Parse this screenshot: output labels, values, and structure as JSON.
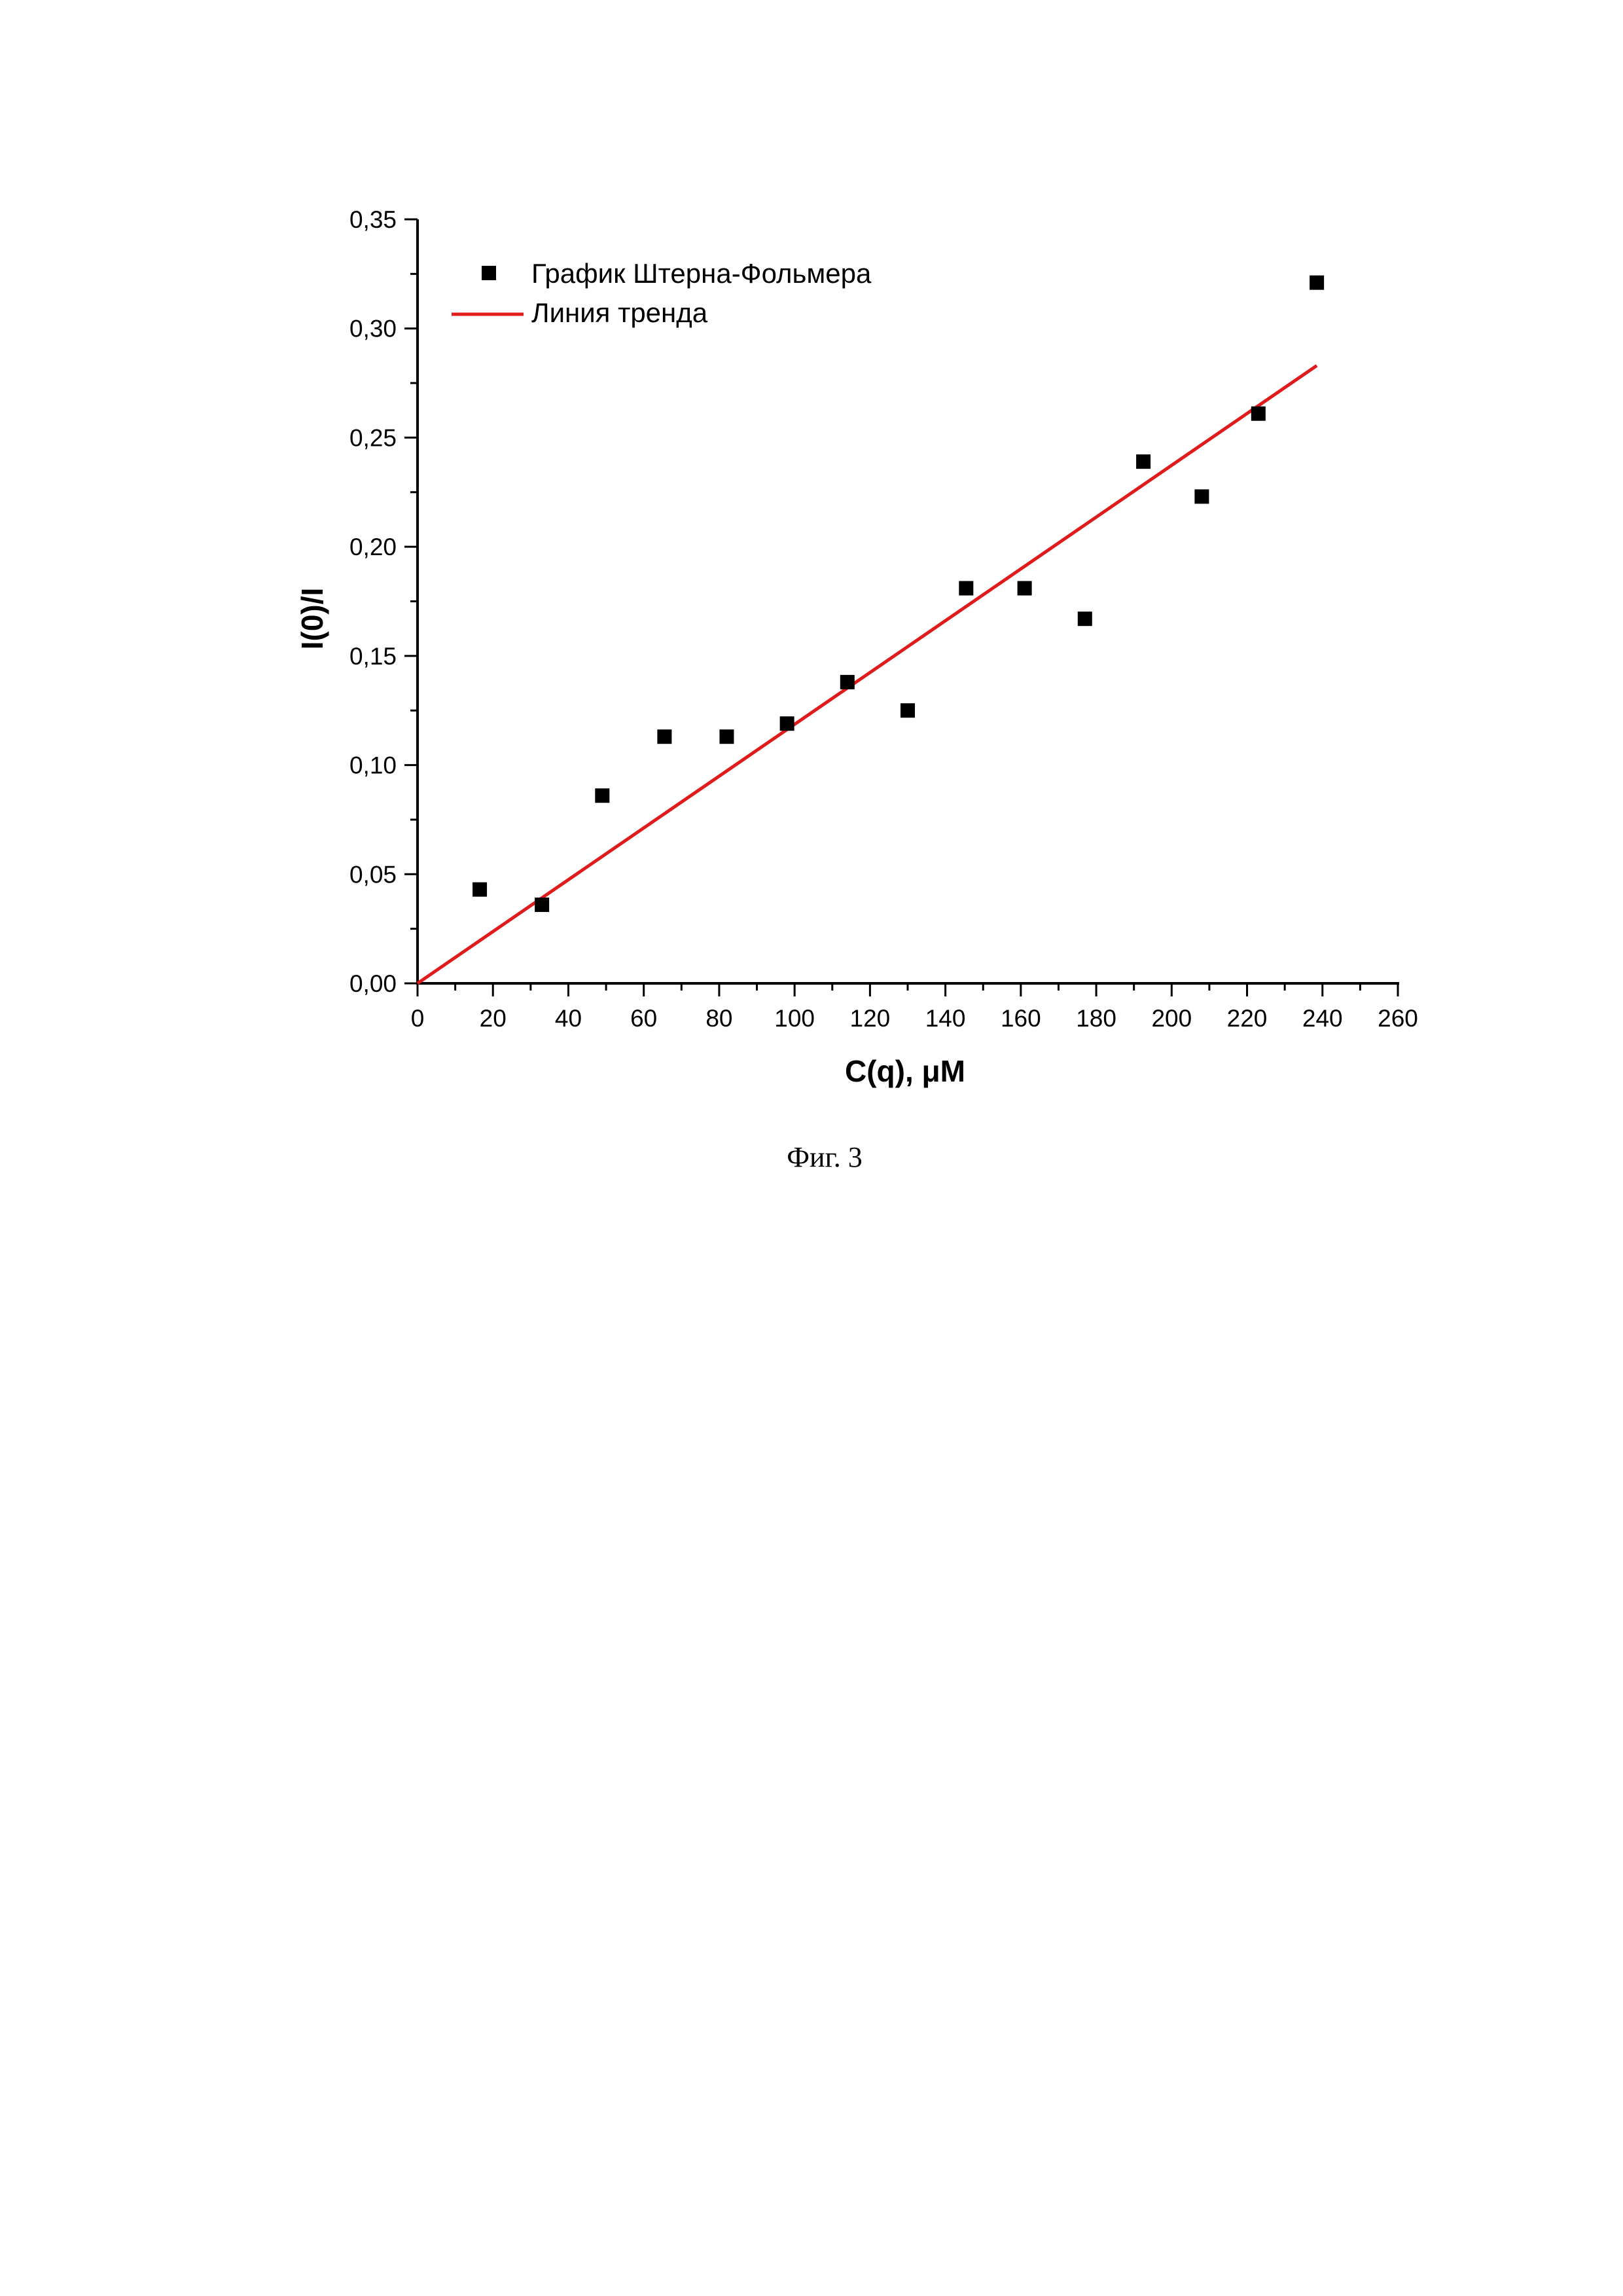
{
  "chart_data": {
    "type": "scatter",
    "xlabel": "C(q), μM",
    "ylabel": "I(0)/I",
    "xlim": [
      0,
      260
    ],
    "ylim": [
      0,
      0.35
    ],
    "x_ticks": [
      0,
      20,
      40,
      60,
      80,
      100,
      120,
      140,
      160,
      180,
      200,
      220,
      240,
      260
    ],
    "x_tick_labels": [
      "0",
      "20",
      "40",
      "60",
      "80",
      "100",
      "120",
      "140",
      "160",
      "180",
      "200",
      "220",
      "240",
      "260"
    ],
    "y_ticks": [
      0,
      0.05,
      0.1,
      0.15,
      0.2,
      0.25,
      0.3,
      0.35
    ],
    "y_tick_labels": [
      "0,00",
      "0,05",
      "0,10",
      "0,15",
      "0,20",
      "0,25",
      "0,30",
      "0,35"
    ],
    "grid": false,
    "legend_position": "top-left",
    "series": [
      {
        "name": "График Штерна-Фольмера",
        "kind": "scatter",
        "marker": "square",
        "color": "#000000",
        "points": [
          [
            16.5,
            0.043
          ],
          [
            33,
            0.036
          ],
          [
            49,
            0.086
          ],
          [
            65.5,
            0.113
          ],
          [
            82,
            0.113
          ],
          [
            98,
            0.119
          ],
          [
            114,
            0.138
          ],
          [
            130,
            0.125
          ],
          [
            145.5,
            0.181
          ],
          [
            161,
            0.181
          ],
          [
            177,
            0.167
          ],
          [
            192.5,
            0.239
          ],
          [
            208,
            0.223
          ],
          [
            223,
            0.261
          ],
          [
            238.5,
            0.321
          ]
        ]
      },
      {
        "name": "Линия тренда",
        "kind": "line",
        "color": "#e01b1b",
        "points": [
          [
            0,
            0
          ],
          [
            238.5,
            0.283
          ]
        ]
      }
    ]
  },
  "caption": "Фиг. 3"
}
